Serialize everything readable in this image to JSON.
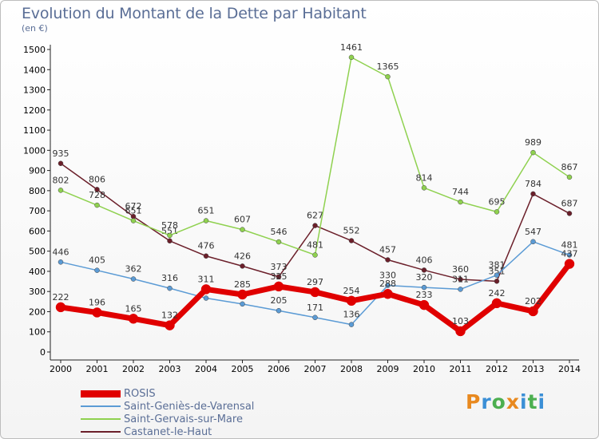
{
  "header": {
    "title": "Evolution du Montant de la Dette par Habitant",
    "unit": "(en €)"
  },
  "brand": {
    "text": "Proxiti",
    "colors": [
      "#e8891f",
      "#3b8fd6",
      "#4caf50",
      "#e8891f",
      "#3b8fd6",
      "#4caf50",
      "#3b8fd6"
    ]
  },
  "chart_data": {
    "type": "line",
    "title": "Evolution du Montant de la Dette par Habitant",
    "ylabel": "(en €)",
    "xlabel": "",
    "ylim": [
      0,
      1500
    ],
    "ytick_step": 100,
    "x": [
      "2000",
      "2001",
      "2002",
      "2003",
      "2004",
      "2005",
      "2006",
      "2007",
      "2008",
      "2009",
      "2010",
      "2011",
      "2012",
      "2013",
      "2014"
    ],
    "grid": false,
    "legend_position": "bottom-left",
    "series": [
      {
        "name": "Castanet-le-Haut",
        "color": "#6b1f2a",
        "width": 1.5,
        "values": [
          935,
          806,
          672,
          551,
          476,
          426,
          373,
          627,
          552,
          457,
          406,
          360,
          351,
          784,
          687
        ],
        "labels": [
          "935",
          "806",
          "672",
          "551",
          "476",
          "426",
          "373",
          "627",
          "552",
          "457",
          "406",
          "360",
          "351",
          "784",
          "687"
        ]
      },
      {
        "name": "Saint-Gervais-sur-Mare",
        "color": "#8fd14f",
        "width": 1.5,
        "values": [
          802,
          728,
          651,
          578,
          651,
          607,
          546,
          481,
          1461,
          1365,
          814,
          744,
          695,
          989,
          867
        ],
        "labels": [
          "802",
          "728",
          "651",
          "578",
          "651",
          "607",
          "546",
          "481",
          "1461",
          "1365",
          "814",
          "744",
          "695",
          "989",
          "867"
        ]
      },
      {
        "name": "Saint-Geniès-de-Varensal",
        "color": "#5b9bd5",
        "width": 1.5,
        "values": [
          446,
          405,
          362,
          316,
          267,
          238,
          205,
          171,
          136,
          330,
          320,
          311,
          381,
          547,
          481
        ],
        "labels": [
          "446",
          "405",
          "362",
          "316",
          "",
          "",
          "205",
          "171",
          "136",
          "330",
          "320",
          "311",
          "381",
          "547",
          "481"
        ]
      },
      {
        "name": "ROSIS",
        "color": "#e00000",
        "width": 7,
        "values": [
          222,
          196,
          165,
          132,
          311,
          285,
          325,
          297,
          254,
          288,
          233,
          103,
          242,
          202,
          437
        ],
        "labels": [
          "222",
          "196",
          "165",
          "132",
          "311",
          "285",
          "325",
          "297",
          "254",
          "288",
          "233",
          "103",
          "242",
          "202",
          "437"
        ]
      }
    ],
    "legend_order": [
      "ROSIS",
      "Saint-Geniès-de-Varensal",
      "Saint-Gervais-sur-Mare",
      "Castanet-le-Haut"
    ]
  }
}
